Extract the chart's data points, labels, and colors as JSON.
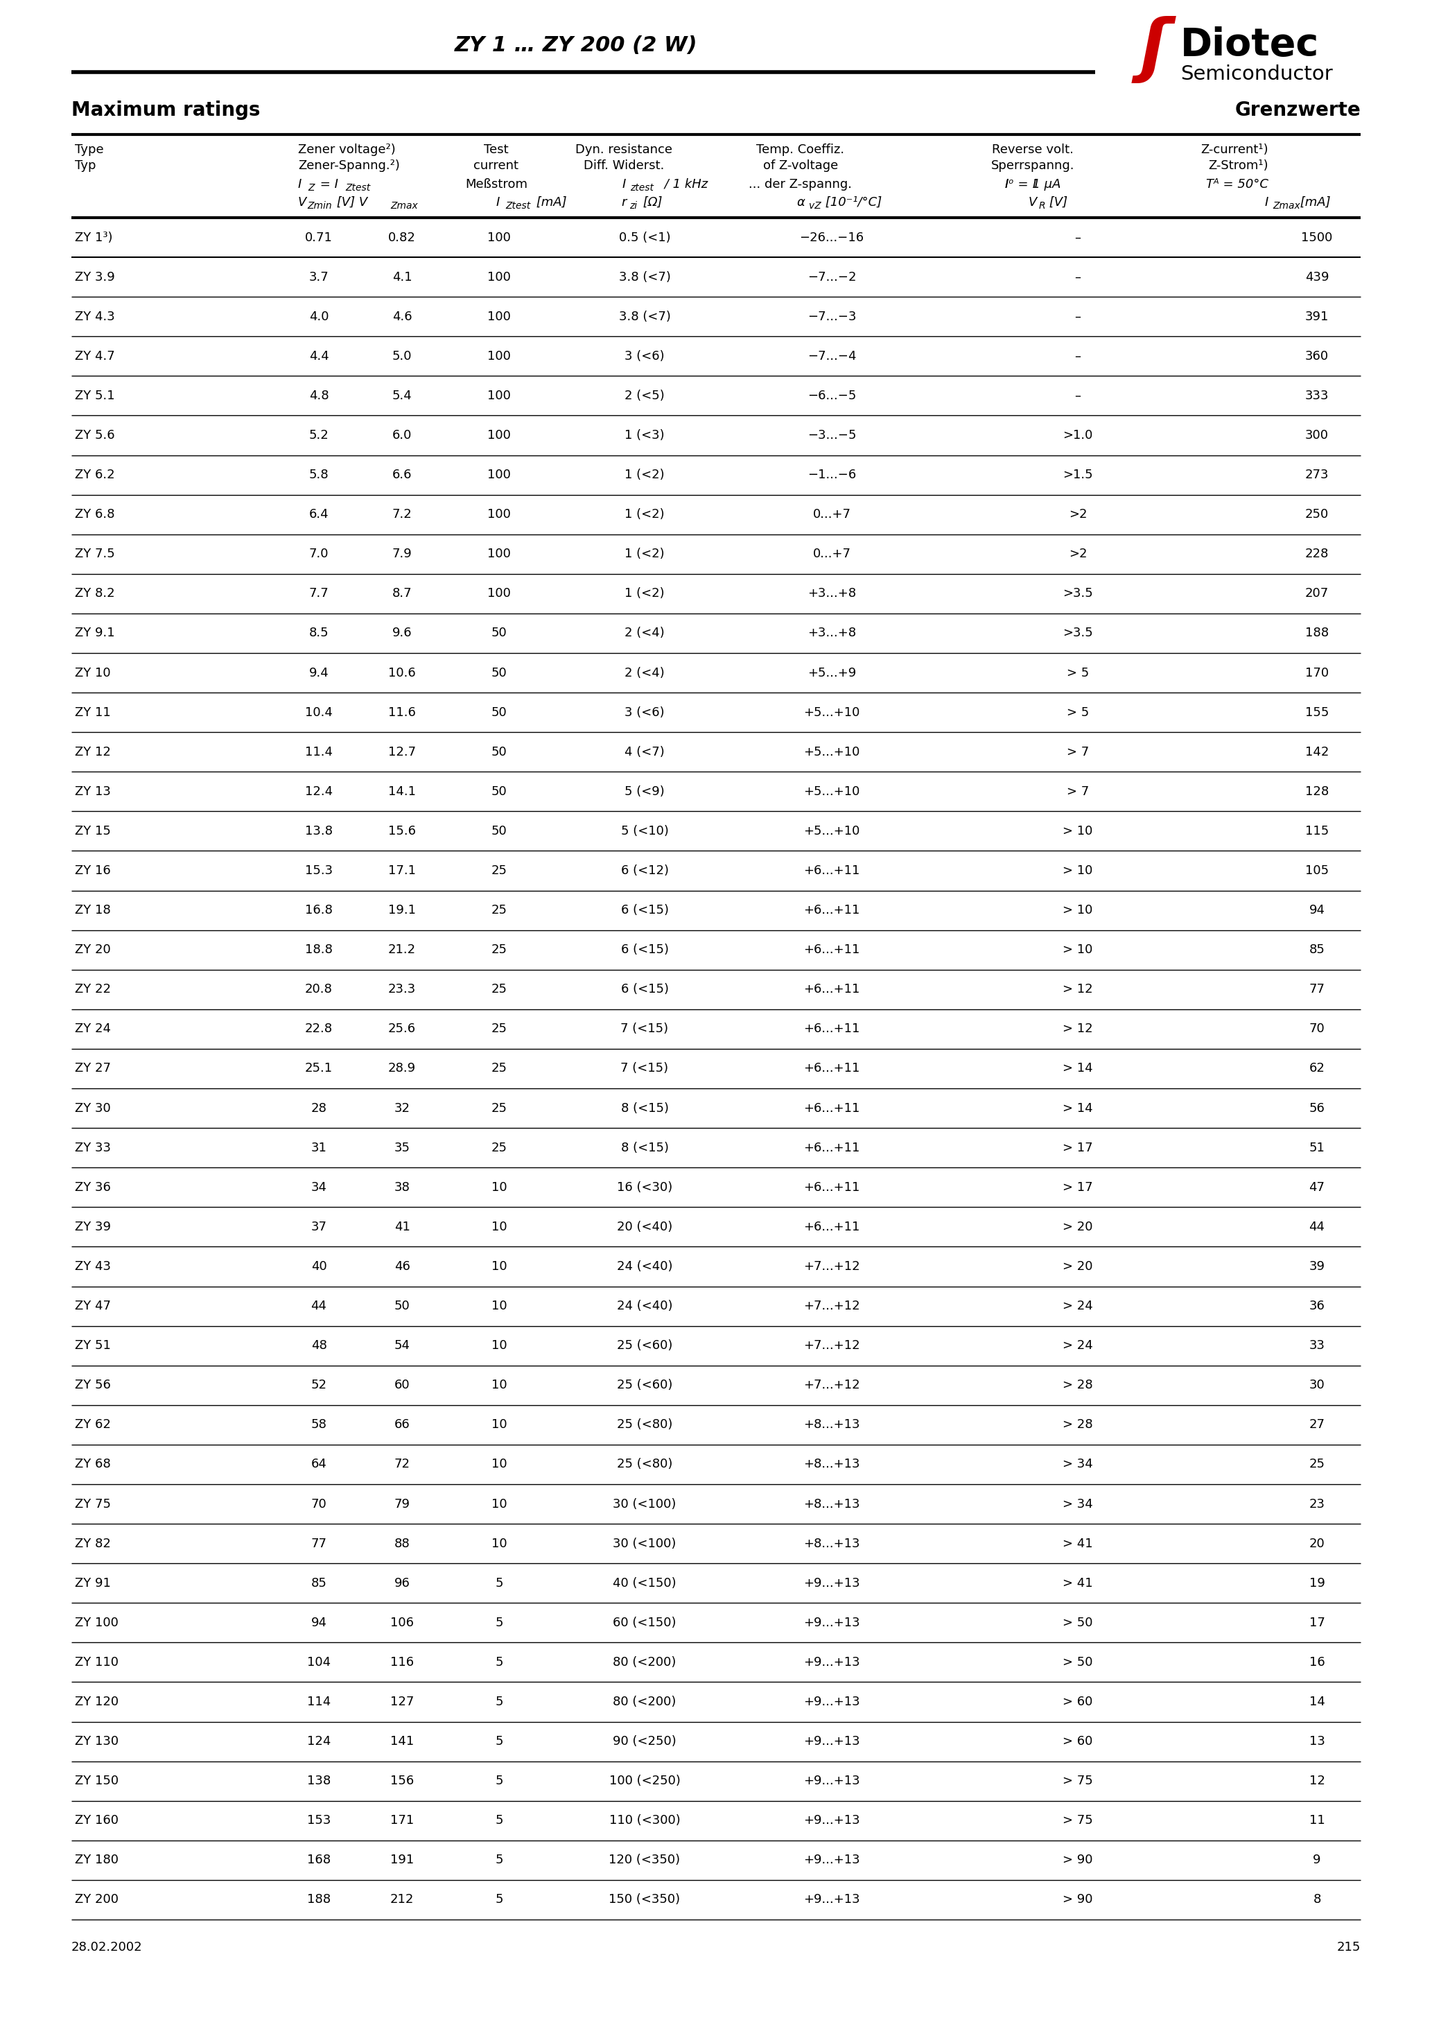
{
  "title": "ZY 1 … ZY 200 (2 W)",
  "section_left": "Maximum ratings",
  "section_right": "Grenzwerte",
  "date": "28.02.2002",
  "page": "215",
  "logo_red": "#cc0000",
  "rows": [
    [
      "ZY 1³)",
      "0.71",
      "0.82",
      "100",
      "0.5 (<1)",
      "−26...−16",
      "–",
      "1500"
    ],
    [
      "ZY 3.9",
      "3.7",
      "4.1",
      "100",
      "3.8 (<7)",
      "−7...−2",
      "–",
      "439"
    ],
    [
      "ZY 4.3",
      "4.0",
      "4.6",
      "100",
      "3.8 (<7)",
      "−7...−3",
      "–",
      "391"
    ],
    [
      "ZY 4.7",
      "4.4",
      "5.0",
      "100",
      "3 (<6)",
      "−7...−4",
      "–",
      "360"
    ],
    [
      "ZY 5.1",
      "4.8",
      "5.4",
      "100",
      "2 (<5)",
      "−6...−5",
      "–",
      "333"
    ],
    [
      "ZY 5.6",
      "5.2",
      "6.0",
      "100",
      "1 (<3)",
      "−3...−5",
      ">1.0",
      "300"
    ],
    [
      "ZY 6.2",
      "5.8",
      "6.6",
      "100",
      "1 (<2)",
      "−1...−6",
      ">1.5",
      "273"
    ],
    [
      "ZY 6.8",
      "6.4",
      "7.2",
      "100",
      "1 (<2)",
      "0...+7",
      ">2",
      "250"
    ],
    [
      "ZY 7.5",
      "7.0",
      "7.9",
      "100",
      "1 (<2)",
      "0...+7",
      ">2",
      "228"
    ],
    [
      "ZY 8.2",
      "7.7",
      "8.7",
      "100",
      "1 (<2)",
      "+3...+8",
      ">3.5",
      "207"
    ],
    [
      "ZY 9.1",
      "8.5",
      "9.6",
      "50",
      "2 (<4)",
      "+3...+8",
      ">3.5",
      "188"
    ],
    [
      "ZY 10",
      "9.4",
      "10.6",
      "50",
      "2 (<4)",
      "+5...+9",
      "> 5",
      "170"
    ],
    [
      "ZY 11",
      "10.4",
      "11.6",
      "50",
      "3 (<6)",
      "+5...+10",
      "> 5",
      "155"
    ],
    [
      "ZY 12",
      "11.4",
      "12.7",
      "50",
      "4 (<7)",
      "+5...+10",
      "> 7",
      "142"
    ],
    [
      "ZY 13",
      "12.4",
      "14.1",
      "50",
      "5 (<9)",
      "+5...+10",
      "> 7",
      "128"
    ],
    [
      "ZY 15",
      "13.8",
      "15.6",
      "50",
      "5 (<10)",
      "+5...+10",
      "> 10",
      "115"
    ],
    [
      "ZY 16",
      "15.3",
      "17.1",
      "25",
      "6 (<12)",
      "+6...+11",
      "> 10",
      "105"
    ],
    [
      "ZY 18",
      "16.8",
      "19.1",
      "25",
      "6 (<15)",
      "+6...+11",
      "> 10",
      "94"
    ],
    [
      "ZY 20",
      "18.8",
      "21.2",
      "25",
      "6 (<15)",
      "+6...+11",
      "> 10",
      "85"
    ],
    [
      "ZY 22",
      "20.8",
      "23.3",
      "25",
      "6 (<15)",
      "+6...+11",
      "> 12",
      "77"
    ],
    [
      "ZY 24",
      "22.8",
      "25.6",
      "25",
      "7 (<15)",
      "+6...+11",
      "> 12",
      "70"
    ],
    [
      "ZY 27",
      "25.1",
      "28.9",
      "25",
      "7 (<15)",
      "+6...+11",
      "> 14",
      "62"
    ],
    [
      "ZY 30",
      "28",
      "32",
      "25",
      "8 (<15)",
      "+6...+11",
      "> 14",
      "56"
    ],
    [
      "ZY 33",
      "31",
      "35",
      "25",
      "8 (<15)",
      "+6...+11",
      "> 17",
      "51"
    ],
    [
      "ZY 36",
      "34",
      "38",
      "10",
      "16 (<30)",
      "+6...+11",
      "> 17",
      "47"
    ],
    [
      "ZY 39",
      "37",
      "41",
      "10",
      "20 (<40)",
      "+6...+11",
      "> 20",
      "44"
    ],
    [
      "ZY 43",
      "40",
      "46",
      "10",
      "24 (<40)",
      "+7...+12",
      "> 20",
      "39"
    ],
    [
      "ZY 47",
      "44",
      "50",
      "10",
      "24 (<40)",
      "+7...+12",
      "> 24",
      "36"
    ],
    [
      "ZY 51",
      "48",
      "54",
      "10",
      "25 (<60)",
      "+7...+12",
      "> 24",
      "33"
    ],
    [
      "ZY 56",
      "52",
      "60",
      "10",
      "25 (<60)",
      "+7...+12",
      "> 28",
      "30"
    ],
    [
      "ZY 62",
      "58",
      "66",
      "10",
      "25 (<80)",
      "+8...+13",
      "> 28",
      "27"
    ],
    [
      "ZY 68",
      "64",
      "72",
      "10",
      "25 (<80)",
      "+8...+13",
      "> 34",
      "25"
    ],
    [
      "ZY 75",
      "70",
      "79",
      "10",
      "30 (<100)",
      "+8...+13",
      "> 34",
      "23"
    ],
    [
      "ZY 82",
      "77",
      "88",
      "10",
      "30 (<100)",
      "+8...+13",
      "> 41",
      "20"
    ],
    [
      "ZY 91",
      "85",
      "96",
      "5",
      "40 (<150)",
      "+9...+13",
      "> 41",
      "19"
    ],
    [
      "ZY 100",
      "94",
      "106",
      "5",
      "60 (<150)",
      "+9...+13",
      "> 50",
      "17"
    ],
    [
      "ZY 110",
      "104",
      "116",
      "5",
      "80 (<200)",
      "+9...+13",
      "> 50",
      "16"
    ],
    [
      "ZY 120",
      "114",
      "127",
      "5",
      "80 (<200)",
      "+9...+13",
      "> 60",
      "14"
    ],
    [
      "ZY 130",
      "124",
      "141",
      "5",
      "90 (<250)",
      "+9...+13",
      "> 60",
      "13"
    ],
    [
      "ZY 150",
      "138",
      "156",
      "5",
      "100 (<250)",
      "+9...+13",
      "> 75",
      "12"
    ],
    [
      "ZY 160",
      "153",
      "171",
      "5",
      "110 (<300)",
      "+9...+13",
      "> 75",
      "11"
    ],
    [
      "ZY 180",
      "168",
      "191",
      "5",
      "120 (<350)",
      "+9...+13",
      "> 90",
      "9"
    ],
    [
      "ZY 200",
      "188",
      "212",
      "5",
      "150 (<350)",
      "+9...+13",
      "> 90",
      "8"
    ]
  ]
}
